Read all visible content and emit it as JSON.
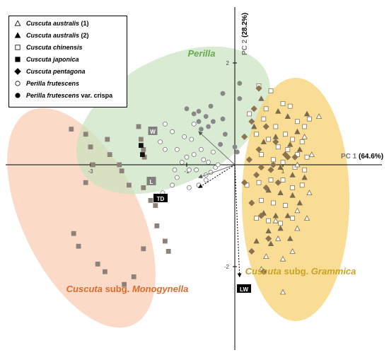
{
  "chart_data": {
    "type": "scatter",
    "x_axis_label": {
      "prefix": "PC 1",
      "pct": "(64.6%)"
    },
    "y_axis_label": {
      "prefix": "PC 2",
      "pct": "(28.2%)"
    },
    "x_ticks": [
      "-3",
      "-1",
      "1"
    ],
    "y_ticks": [
      "2",
      "-2"
    ],
    "xlim": [
      -3.7,
      2.6
    ],
    "ylim": [
      -2.7,
      2.6
    ],
    "legend": [
      {
        "label": "Cuscuta australis (1)",
        "style_label": "Cuscuta australis",
        "suffix": " (1)",
        "marker": "triangle-open"
      },
      {
        "label": "Cuscuta australis (2)",
        "style_label": "Cuscuta australis",
        "suffix": " (2)",
        "marker": "triangle-filled"
      },
      {
        "label": "Cuscuta chinensis",
        "style_label": "Cuscuta chinensis",
        "suffix": "",
        "marker": "square-open"
      },
      {
        "label": "Cuscuta japonica",
        "style_label": "Cuscuta japonica",
        "suffix": "",
        "marker": "square-filled"
      },
      {
        "label": "Cuscuta pentagona",
        "style_label": "Cuscuta pentagona",
        "suffix": "",
        "marker": "diamond-filled"
      },
      {
        "label": "Perilla frutescens",
        "style_label": "Perilla frutescens",
        "suffix": "",
        "marker": "circle-open"
      },
      {
        "label": "Perilla frutescens var. crispa",
        "style_label": "Perilla frutescens",
        "suffix": " var. crispa",
        "marker": "circle-filled"
      }
    ],
    "groups": [
      {
        "label_a": "Perilla",
        "label_b": "",
        "label_c": "",
        "color": "#6aa84f",
        "fill": "#c9e3c1"
      },
      {
        "label_a": "Cuscuta",
        "label_b": " subg. ",
        "label_c": "Grammica",
        "color": "#c9a227",
        "fill": "#f7d47a"
      },
      {
        "label_a": "Cuscuta",
        "label_b": " subg. ",
        "label_c": "Monogynella",
        "color": "#e06b2a",
        "fill": "#f9cdb4"
      }
    ],
    "loadings": [
      {
        "label": "W",
        "x": -0.75,
        "y": 0.65,
        "style": "solid",
        "box": "#7f7f7f"
      },
      {
        "label": "L",
        "x": -0.75,
        "y": -0.25,
        "style": "solid",
        "box": "#7f7f7f"
      },
      {
        "label": "TD",
        "x": -0.75,
        "y": -0.45,
        "style": "dotted",
        "box": "#000000"
      },
      {
        "label": "LW",
        "x": 0.1,
        "y": -2.2,
        "style": "dotted",
        "box": "#000000"
      }
    ],
    "series": {
      "japonica_sq": [
        [
          -3.4,
          0.7
        ],
        [
          -3.1,
          0.6
        ],
        [
          -3.0,
          0.35
        ],
        [
          -2.95,
          0.0
        ],
        [
          -2.65,
          0.5
        ],
        [
          -2.6,
          0.2
        ],
        [
          -2.4,
          0.0
        ],
        [
          -2.35,
          -0.12
        ],
        [
          -3.1,
          -0.35
        ],
        [
          -2.2,
          -0.4
        ],
        [
          -2.0,
          0.75
        ],
        [
          -1.95,
          0.5
        ],
        [
          -1.9,
          0.3
        ],
        [
          -1.88,
          0.15
        ],
        [
          -1.9,
          -0.45
        ],
        [
          -1.75,
          -0.7
        ],
        [
          -1.65,
          -0.8
        ],
        [
          -1.62,
          -1.2
        ],
        [
          -1.45,
          -1.5
        ],
        [
          -1.38,
          -1.7
        ],
        [
          -3.35,
          -1.35
        ],
        [
          -3.25,
          -1.6
        ],
        [
          -2.85,
          -1.95
        ],
        [
          -2.7,
          -2.1
        ],
        [
          -2.3,
          -2.35
        ],
        [
          -2.1,
          -2.2
        ],
        [
          -1.9,
          -1.65
        ]
      ],
      "japonica_black": [
        [
          -1.95,
          0.38
        ],
        [
          -1.92,
          0.2
        ]
      ],
      "crispa_filled": [
        [
          0.1,
          1.6
        ],
        [
          0.1,
          1.3
        ],
        [
          -0.25,
          1.4
        ],
        [
          -0.5,
          1.15
        ],
        [
          -0.75,
          1.05
        ],
        [
          -0.6,
          0.95
        ],
        [
          -0.45,
          0.85
        ],
        [
          -0.25,
          0.9
        ],
        [
          -1.0,
          1.1
        ],
        [
          -0.85,
          1.0
        ],
        [
          -0.75,
          0.85
        ],
        [
          -0.55,
          0.75
        ],
        [
          -0.3,
          0.4
        ],
        [
          -0.2,
          0.6
        ],
        [
          0.0,
          0.35
        ],
        [
          0.05,
          0.25
        ],
        [
          -0.7,
          0.7
        ]
      ],
      "frutescens_open": [
        [
          -1.45,
          0.8
        ],
        [
          -1.3,
          0.65
        ],
        [
          -1.2,
          0.3
        ],
        [
          -1.1,
          0.05
        ],
        [
          -1.0,
          0.15
        ],
        [
          -0.95,
          -0.1
        ],
        [
          -0.85,
          0.2
        ],
        [
          -0.8,
          -0.1
        ],
        [
          -0.7,
          0.3
        ],
        [
          -0.65,
          0.1
        ],
        [
          -0.6,
          -0.2
        ],
        [
          -0.55,
          0.05
        ],
        [
          -0.5,
          -0.15
        ],
        [
          -0.45,
          0.25
        ],
        [
          -0.4,
          -0.05
        ],
        [
          -0.35,
          0.0
        ],
        [
          -1.5,
          -0.55
        ],
        [
          -1.3,
          -0.4
        ],
        [
          -1.2,
          -0.25
        ],
        [
          -0.95,
          -0.45
        ],
        [
          -0.75,
          -0.4
        ],
        [
          -0.6,
          -0.3
        ],
        [
          -1.45,
          0.3
        ],
        [
          -1.55,
          0.45
        ],
        [
          -1.25,
          -0.1
        ],
        [
          -0.9,
          0.5
        ],
        [
          -0.85,
          0.8
        ],
        [
          -1.05,
          0.55
        ]
      ],
      "chinensis_open": [
        [
          0.5,
          1.55
        ],
        [
          0.75,
          1.45
        ],
        [
          1.0,
          1.2
        ],
        [
          1.15,
          1.15
        ],
        [
          1.3,
          0.85
        ],
        [
          1.45,
          0.75
        ],
        [
          0.6,
          0.9
        ],
        [
          0.85,
          0.75
        ],
        [
          1.05,
          0.6
        ],
        [
          1.2,
          0.5
        ],
        [
          1.4,
          0.45
        ],
        [
          0.45,
          0.6
        ],
        [
          0.7,
          0.5
        ],
        [
          0.9,
          0.35
        ],
        [
          1.1,
          0.3
        ],
        [
          1.3,
          0.2
        ],
        [
          1.5,
          0.15
        ],
        [
          0.55,
          0.2
        ],
        [
          0.8,
          0.1
        ],
        [
          1.0,
          0.05
        ],
        [
          1.25,
          -0.05
        ],
        [
          1.45,
          -0.1
        ],
        [
          0.25,
          -0.4
        ],
        [
          0.5,
          -0.35
        ],
        [
          0.75,
          -0.3
        ],
        [
          1.0,
          -0.3
        ],
        [
          1.2,
          -0.45
        ],
        [
          1.4,
          -0.4
        ],
        [
          0.55,
          -0.7
        ],
        [
          0.8,
          -0.75
        ],
        [
          1.05,
          -0.8
        ],
        [
          0.45,
          -1.05
        ],
        [
          0.7,
          -1.1
        ],
        [
          0.95,
          -1.15
        ],
        [
          1.2,
          -1.05
        ],
        [
          0.3,
          1.0
        ],
        [
          1.55,
          0.9
        ],
        [
          0.65,
          1.1
        ]
      ],
      "australis2_filled": [
        [
          0.9,
          1.05
        ],
        [
          1.1,
          0.95
        ],
        [
          1.3,
          0.65
        ],
        [
          1.5,
          1.0
        ],
        [
          0.6,
          0.45
        ],
        [
          0.85,
          0.55
        ],
        [
          1.15,
          0.4
        ],
        [
          1.35,
          0.3
        ],
        [
          0.95,
          -0.05
        ],
        [
          1.2,
          -0.2
        ],
        [
          1.45,
          -0.25
        ],
        [
          0.7,
          -0.5
        ],
        [
          0.95,
          -0.55
        ],
        [
          1.2,
          -0.6
        ],
        [
          1.35,
          -0.75
        ],
        [
          0.6,
          -0.95
        ],
        [
          0.85,
          -1.0
        ],
        [
          1.1,
          -1.0
        ],
        [
          0.7,
          -1.3
        ],
        [
          0.95,
          -1.25
        ],
        [
          1.15,
          -1.45
        ],
        [
          0.45,
          -1.5
        ],
        [
          0.75,
          -1.55
        ],
        [
          0.4,
          0.75
        ],
        [
          0.55,
          1.3
        ]
      ],
      "australis1_open": [
        [
          1.75,
          0.95
        ],
        [
          1.45,
          0.55
        ],
        [
          1.6,
          0.2
        ],
        [
          1.3,
          0.0
        ],
        [
          1.55,
          -0.55
        ],
        [
          1.3,
          -0.9
        ],
        [
          0.9,
          -1.45
        ],
        [
          1.3,
          -1.25
        ],
        [
          0.65,
          -1.8
        ],
        [
          1.0,
          -1.85
        ],
        [
          1.2,
          -1.7
        ],
        [
          1.0,
          -2.5
        ],
        [
          0.55,
          -2.05
        ],
        [
          0.85,
          -1.1
        ],
        [
          1.5,
          -1.05
        ]
      ],
      "pentagona_diamond": [
        [
          0.5,
          1.5
        ],
        [
          0.4,
          1.1
        ],
        [
          0.65,
          0.75
        ],
        [
          0.85,
          0.45
        ],
        [
          0.5,
          0.3
        ],
        [
          0.3,
          0.1
        ],
        [
          0.55,
          -0.05
        ],
        [
          0.75,
          -0.1
        ],
        [
          1.05,
          0.2
        ],
        [
          1.25,
          0.15
        ],
        [
          0.2,
          -0.35
        ],
        [
          0.45,
          -0.2
        ],
        [
          0.65,
          -0.45
        ],
        [
          0.9,
          -0.35
        ],
        [
          0.35,
          -0.75
        ],
        [
          0.55,
          -1.0
        ],
        [
          0.7,
          -1.45
        ],
        [
          0.35,
          -1.7
        ],
        [
          0.6,
          -2.1
        ],
        [
          0.8,
          0.0
        ],
        [
          1.1,
          0.15
        ],
        [
          0.35,
          0.85
        ],
        [
          0.2,
          0.55
        ]
      ]
    }
  }
}
